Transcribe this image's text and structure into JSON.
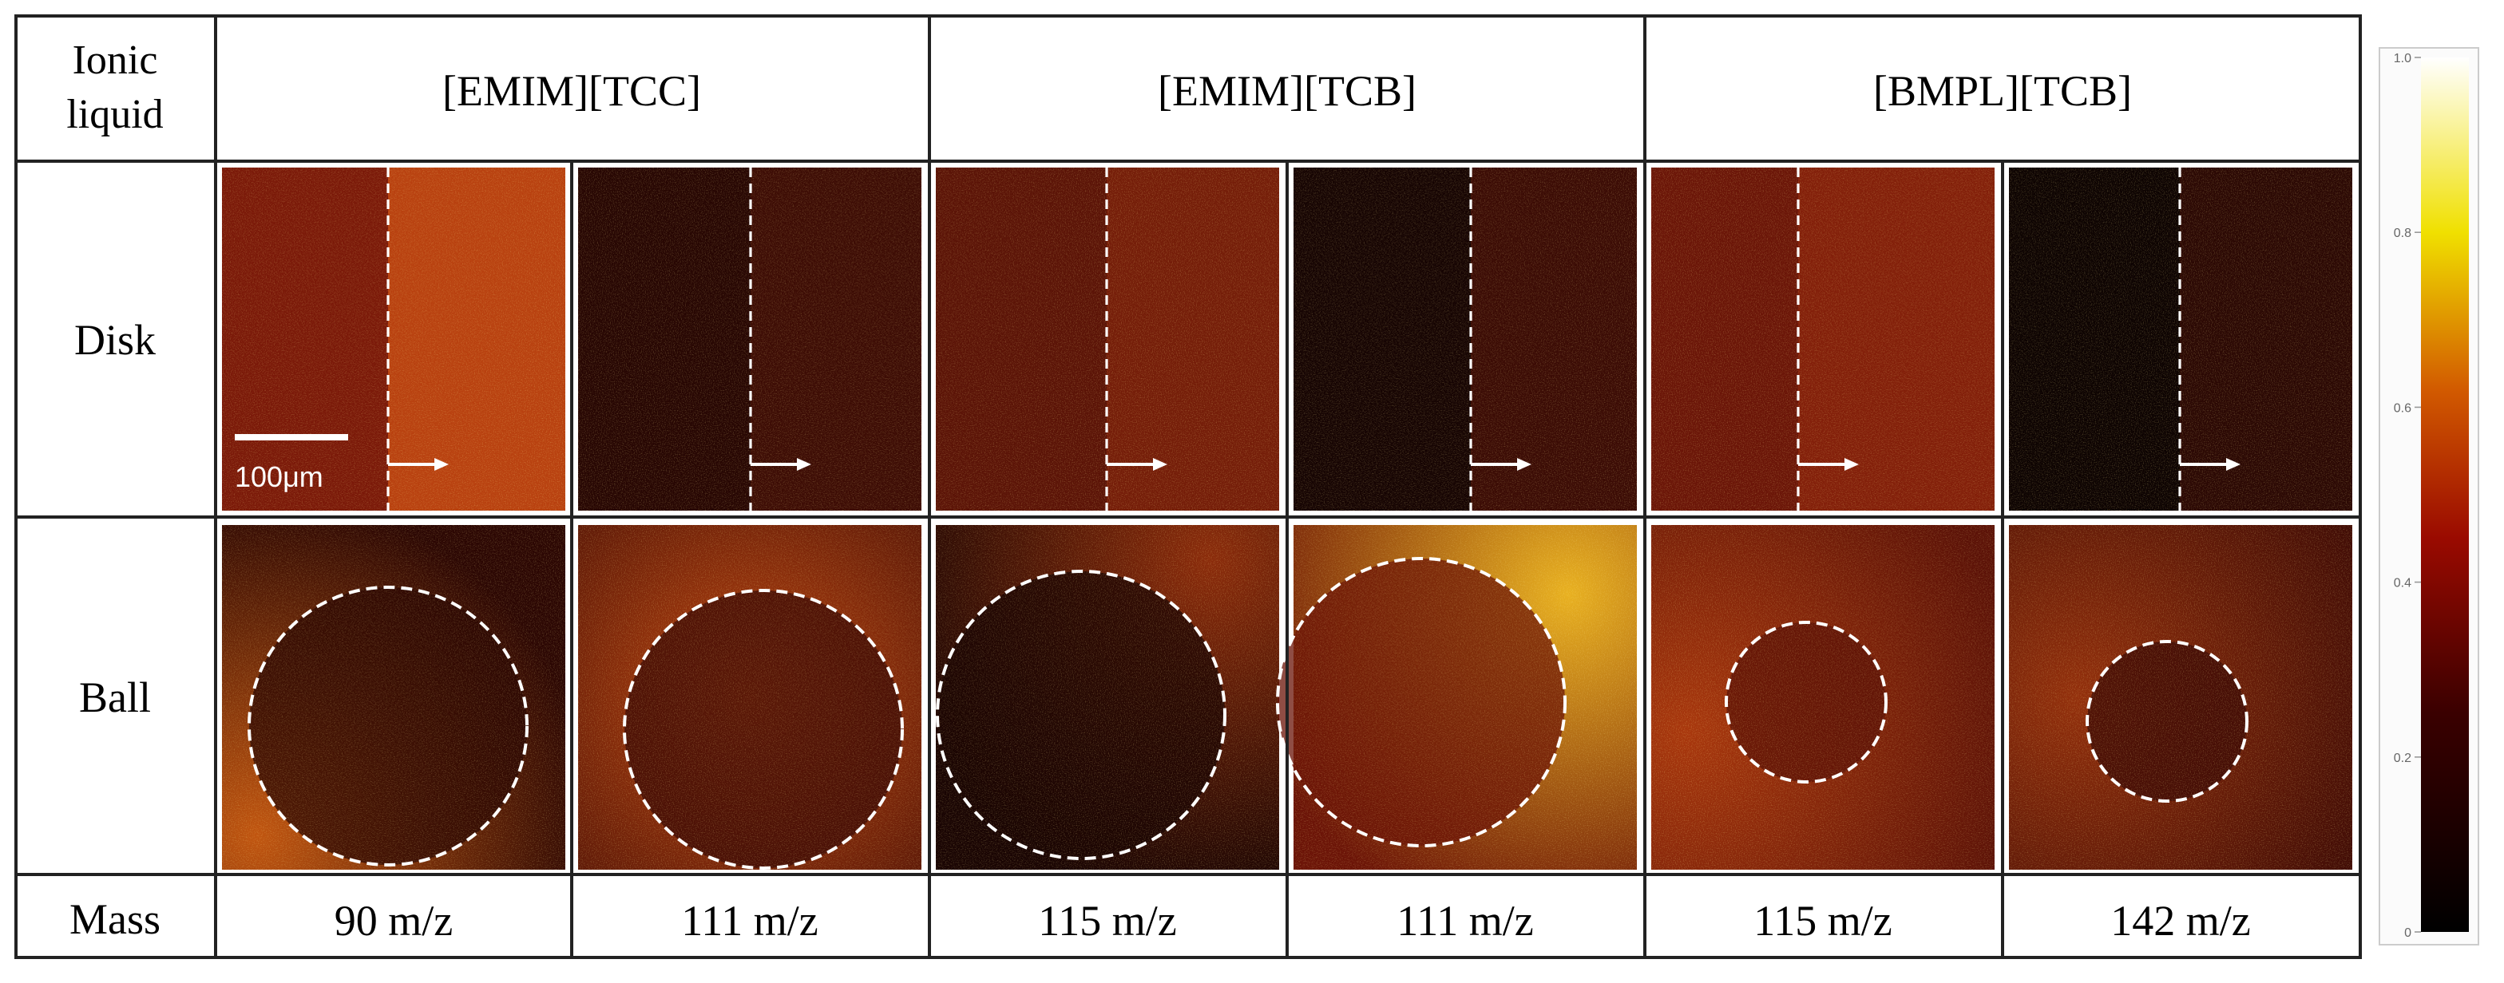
{
  "header": {
    "first": [
      "Ionic",
      "liquid"
    ],
    "liquids": [
      "[EMIM][TCC]",
      "[EMIM][TCB]",
      "[BMPL][TCB]"
    ]
  },
  "rows": {
    "disk": "Disk",
    "ball": "Ball",
    "mass": "Mass"
  },
  "masses": [
    "90 m/z",
    "111 m/z",
    "115 m/z",
    "111 m/z",
    "115 m/z",
    "142 m/z"
  ],
  "scale_bar": "100μm",
  "colorbar": {
    "lim": [
      0,
      1
    ],
    "ticks": [
      0,
      0.2,
      0.4,
      0.6,
      0.8,
      {
        "value": 1,
        "label": "1.0"
      }
    ]
  }
}
